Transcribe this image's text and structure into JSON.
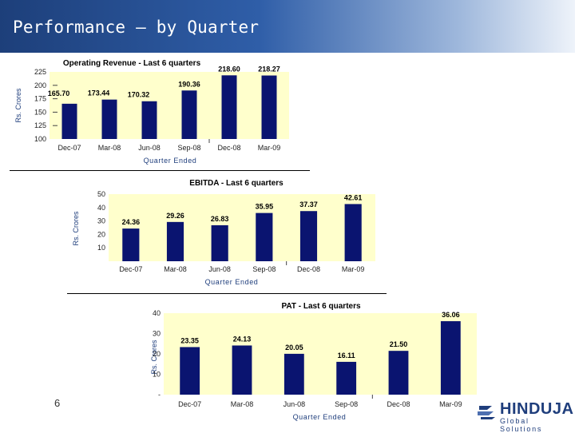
{
  "header": {
    "title": "Performance – by Quarter"
  },
  "footer": {
    "page_number": "6",
    "logo_brand": "HINDUJA",
    "logo_tagline": "Global Solutions"
  },
  "chart_data": [
    {
      "type": "bar",
      "title": "Operating Revenue - Last 6 quarters",
      "xlabel": "Quarter Ended",
      "ylabel": "Rs. Crores",
      "categories": [
        "Dec-07",
        "Mar-08",
        "Jun-08",
        "Sep-08",
        "Dec-08",
        "Mar-09"
      ],
      "values": [
        165.7,
        173.44,
        170.32,
        190.36,
        218.6,
        218.27
      ],
      "value_labels": [
        "165.70",
        "173.44",
        "170.32",
        "190.36",
        "218.60",
        "218.27"
      ],
      "ylim": [
        100,
        225
      ],
      "yticks": [
        "100",
        "125",
        "150",
        "175",
        "200",
        "225"
      ],
      "bar_color": "#0a1470",
      "plot_bg": "#ffffcc"
    },
    {
      "type": "bar",
      "title": "EBITDA - Last 6 quarters",
      "xlabel": "Quarter Ended",
      "ylabel": "Rs. Crores",
      "categories": [
        "Dec-07",
        "Mar-08",
        "Jun-08",
        "Sep-08",
        "Dec-08",
        "Mar-09"
      ],
      "values": [
        24.36,
        29.26,
        26.83,
        35.95,
        37.37,
        42.61
      ],
      "value_labels": [
        "24.36",
        "29.26",
        "26.83",
        "35.95",
        "37.37",
        "42.61"
      ],
      "ylim": [
        0,
        50
      ],
      "yticks": [
        "10",
        "20",
        "30",
        "40",
        "50"
      ],
      "bar_color": "#0a1470",
      "plot_bg": "#ffffcc"
    },
    {
      "type": "bar",
      "title": "PAT - Last 6 quarters",
      "xlabel": "Quarter Ended",
      "ylabel": "Rs. Crores",
      "categories": [
        "Dec-07",
        "Mar-08",
        "Jun-08",
        "Sep-08",
        "Dec-08",
        "Mar-09"
      ],
      "values": [
        23.35,
        24.13,
        20.05,
        16.11,
        21.5,
        36.06
      ],
      "value_labels": [
        "23.35",
        "24.13",
        "20.05",
        "16.11",
        "21.50",
        "36.06"
      ],
      "ylim": [
        0,
        40
      ],
      "yticks": [
        "-",
        "10",
        "20",
        "30",
        "40"
      ],
      "bar_color": "#0a1470",
      "plot_bg": "#ffffcc"
    }
  ]
}
